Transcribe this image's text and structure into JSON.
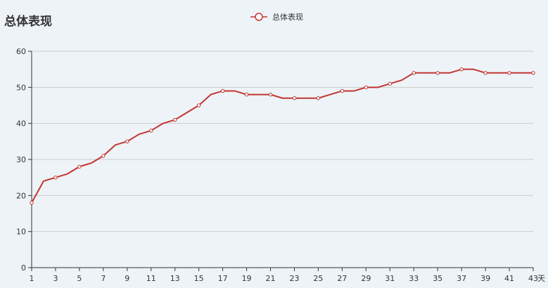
{
  "chart_data": {
    "type": "line",
    "title": "总体表现",
    "x_unit": "天",
    "x": [
      1,
      2,
      3,
      4,
      5,
      6,
      7,
      8,
      9,
      10,
      11,
      12,
      13,
      14,
      15,
      16,
      17,
      18,
      19,
      20,
      21,
      22,
      23,
      24,
      25,
      26,
      27,
      28,
      29,
      30,
      31,
      32,
      33,
      34,
      35,
      36,
      37,
      38,
      39,
      40,
      41,
      42,
      43
    ],
    "x_tick_labels": [
      1,
      3,
      5,
      7,
      9,
      11,
      13,
      15,
      17,
      19,
      21,
      23,
      25,
      27,
      29,
      31,
      33,
      35,
      37,
      39,
      41,
      43
    ],
    "series": [
      {
        "name": "总体表现",
        "color": "#c23531",
        "values": [
          18,
          24,
          25,
          26,
          28,
          29,
          31,
          34,
          35,
          37,
          38,
          40,
          41,
          43,
          45,
          48,
          49,
          49,
          48,
          48,
          48,
          47,
          47,
          47,
          47,
          48,
          49,
          49,
          50,
          50,
          51,
          52,
          54,
          54,
          54,
          54,
          55,
          55,
          54,
          54,
          54,
          54,
          54
        ]
      }
    ],
    "xlim": [
      1,
      43
    ],
    "ylim": [
      0,
      60
    ],
    "y_ticks": [
      0,
      10,
      20,
      30,
      40,
      50,
      60
    ],
    "grid": true,
    "legend": "top-center"
  }
}
